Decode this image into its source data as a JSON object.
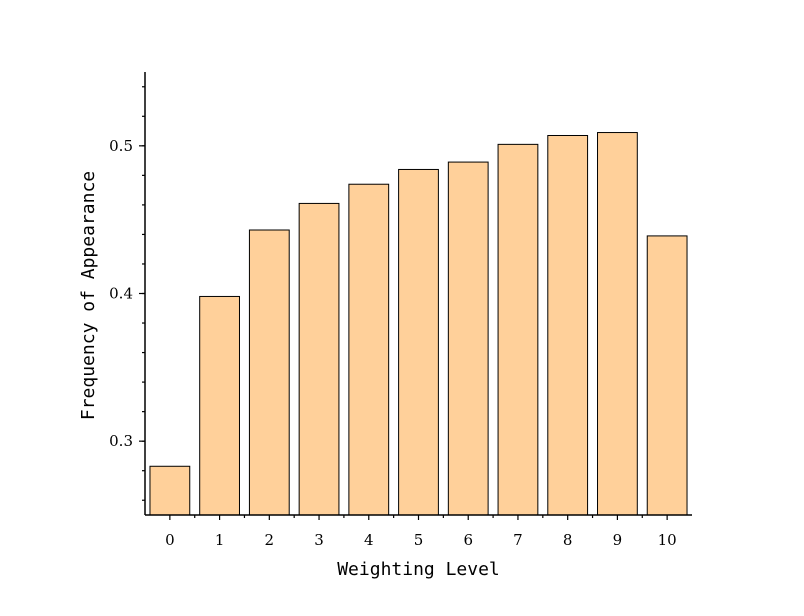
{
  "chart_data": {
    "type": "bar",
    "categories": [
      "0",
      "1",
      "2",
      "3",
      "4",
      "5",
      "6",
      "7",
      "8",
      "9",
      "10"
    ],
    "values": [
      0.283,
      0.398,
      0.443,
      0.461,
      0.474,
      0.484,
      0.489,
      0.501,
      0.507,
      0.509,
      0.439
    ],
    "xlabel": "Weighting Level",
    "ylabel": "Frequency of Appearance",
    "ylim": [
      0.25,
      0.55
    ],
    "yticks": [
      "0.3",
      "0.4",
      "0.5"
    ],
    "grid": false,
    "legend": "none",
    "bar_color": "#FFD09A",
    "edge_color": "#000000"
  }
}
